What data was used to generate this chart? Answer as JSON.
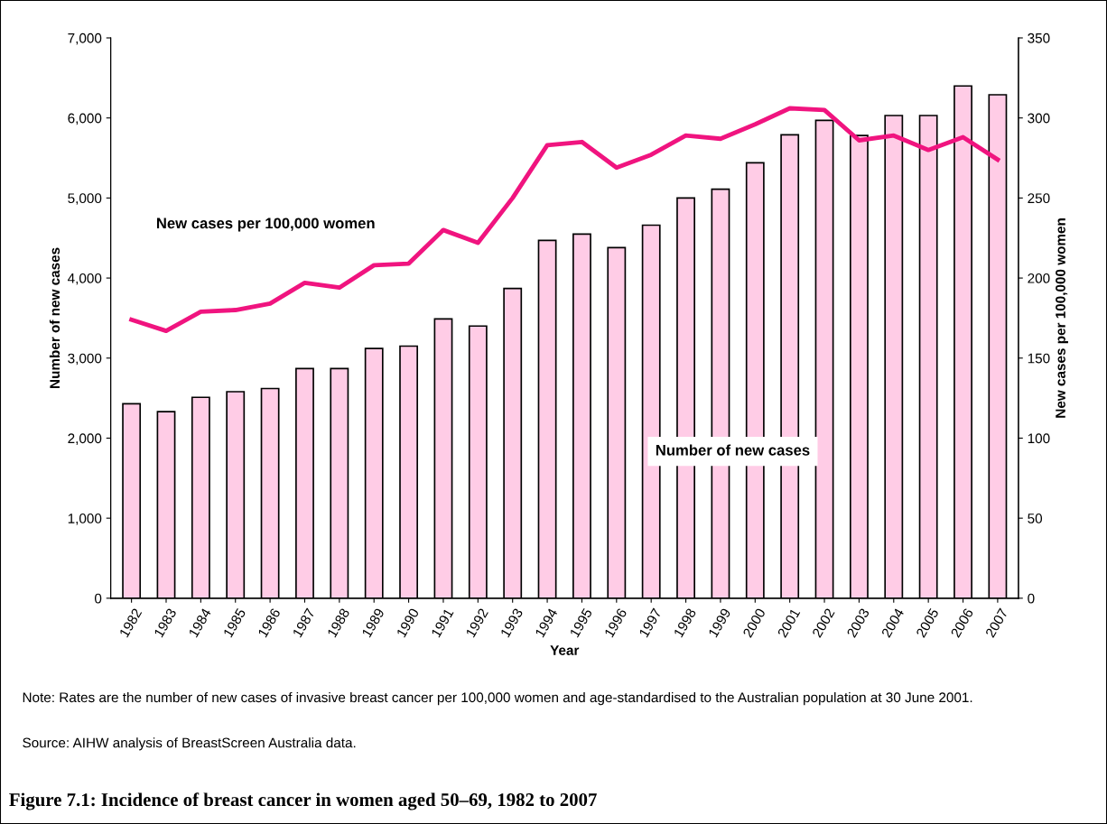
{
  "chart_data": {
    "type": "bar",
    "title": "Figure 7.1: Incidence of breast cancer in women aged 50–69, 1982 to 2007",
    "xlabel": "Year",
    "ylabel": "Number of new cases",
    "y2label": "New cases per 100,000 women",
    "categories": [
      "1982",
      "1983",
      "1984",
      "1985",
      "1986",
      "1987",
      "1988",
      "1989",
      "1990",
      "1991",
      "1992",
      "1993",
      "1994",
      "1995",
      "1996",
      "1997",
      "1998",
      "1999",
      "2000",
      "2001",
      "2002",
      "2003",
      "2004",
      "2005",
      "2006",
      "2007"
    ],
    "series": [
      {
        "name": "Number of new cases",
        "color": "#ffcce6",
        "values": [
          2430,
          2330,
          2510,
          2580,
          2620,
          2870,
          2870,
          3120,
          3150,
          3490,
          3400,
          3870,
          4470,
          4550,
          4380,
          4660,
          5000,
          5110,
          5440,
          5790,
          5970,
          5780,
          6030,
          6030,
          6400,
          6290
        ]
      },
      {
        "name": "New cases per 100,000 women",
        "type": "line",
        "axis": "y2",
        "color": "#f0147f",
        "values": [
          174,
          167,
          179,
          180,
          184,
          197,
          194,
          208,
          209,
          230,
          222,
          250,
          283,
          285,
          269,
          277,
          289,
          287,
          296,
          306,
          305,
          286,
          289,
          280,
          288,
          274
        ]
      }
    ],
    "ylim": [
      0,
      7000
    ],
    "yticks": [
      0,
      {
        "value": 1000,
        "label": "1,000"
      },
      {
        "value": 2000,
        "label": "2,000"
      },
      {
        "value": 3000,
        "label": "3,000"
      },
      {
        "value": 4000,
        "label": "4,000"
      },
      {
        "value": 5000,
        "label": "5,000"
      },
      {
        "value": 6000,
        "label": "6,000"
      },
      {
        "value": 7000,
        "label": "7,000"
      }
    ],
    "y2lim": [
      0,
      350
    ],
    "y2ticks": [
      0,
      50,
      100,
      150,
      200,
      250,
      300,
      350
    ],
    "annotations": [
      "Note: Rates are the number of new cases of invasive breast cancer per 100,000 women and age-standardised to the Australian population at 30 June 2001.",
      "Source: AIHW analysis of BreastScreen Australia data."
    ],
    "legend": false,
    "grid": false
  }
}
